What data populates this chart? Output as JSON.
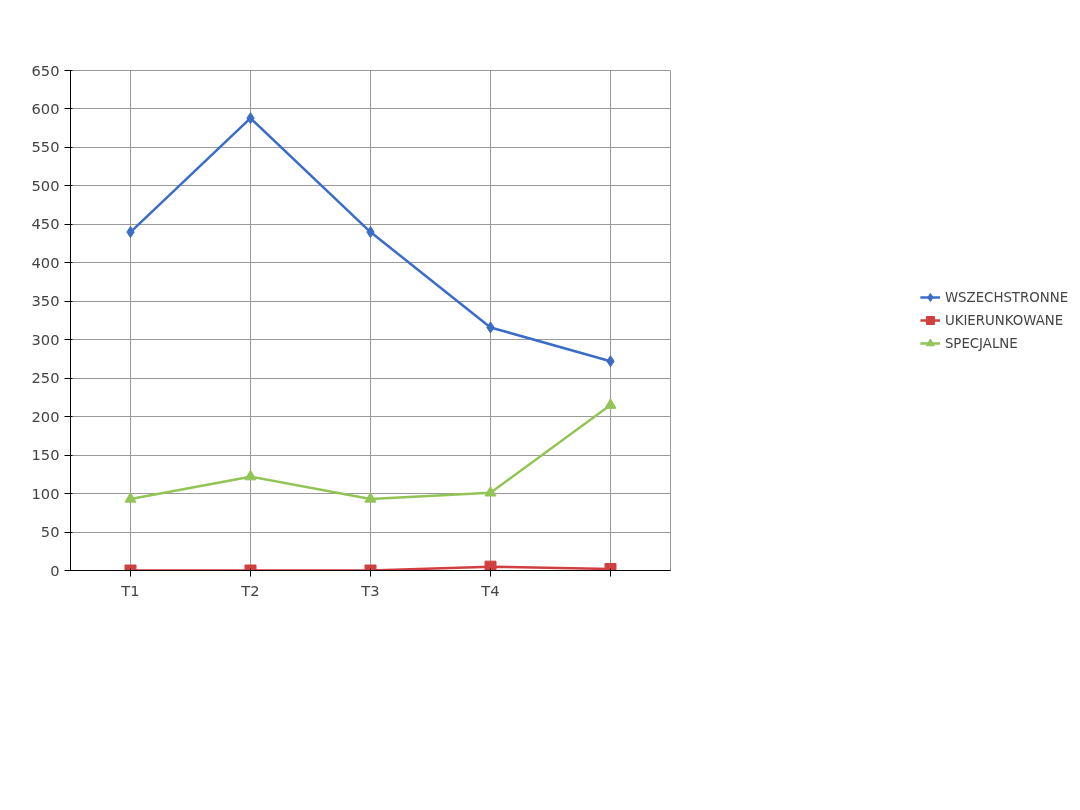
{
  "chart_data": {
    "type": "line",
    "categories": [
      "T1",
      "T2",
      "T3",
      "T4",
      null
    ],
    "ylim": [
      0,
      650
    ],
    "yticks": [
      0,
      50,
      100,
      150,
      200,
      250,
      300,
      350,
      400,
      450,
      500,
      550,
      600,
      650
    ],
    "grid": true,
    "legend": "right",
    "series": [
      {
        "name": "WSZECHSTRONNE",
        "color": "#3a6cc8",
        "marker": "diamond",
        "values": [
          440,
          588,
          440,
          316,
          272
        ]
      },
      {
        "name": "UKIERUNKOWANE",
        "color": "#d04040",
        "marker": "square",
        "values": [
          0,
          0,
          0,
          5,
          2
        ]
      },
      {
        "name": "SPECJALNE",
        "color": "#92c456",
        "marker": "triangle",
        "values": [
          93,
          122,
          93,
          101,
          215
        ]
      }
    ]
  }
}
